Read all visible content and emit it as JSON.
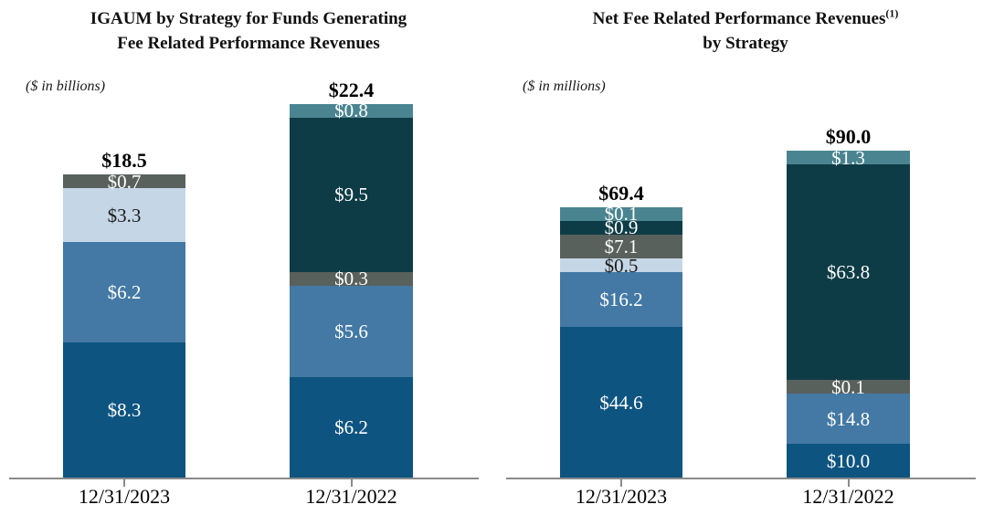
{
  "chart_data": [
    {
      "type": "bar",
      "stacked": true,
      "title_line1": "IGAUM by Strategy for Funds Generating",
      "title_sup": "",
      "title_line2": "Fee Related Performance Revenues",
      "unit_note": "($ in billions)",
      "categories": [
        "12/31/2023",
        "12/31/2022"
      ],
      "totals": [
        18.5,
        22.4
      ],
      "total_labels": [
        "$18.5",
        "$22.4"
      ],
      "legend": "none",
      "axis": {
        "baseline": true,
        "ticks": true,
        "gridlines": false
      },
      "series": [
        {
          "name": "dark-blue",
          "color": "#0E5480",
          "label_color": "#FFFFFF",
          "values": [
            8.3,
            6.2
          ],
          "labels": [
            "$8.3",
            "$6.2"
          ]
        },
        {
          "name": "medium-blue",
          "color": "#4379A4",
          "label_color": "#FFFFFF",
          "values": [
            6.2,
            5.6
          ],
          "labels": [
            "$6.2",
            "$5.6"
          ]
        },
        {
          "name": "light-blue",
          "color": "#C5D6E6",
          "label_color": "#1A1A1A",
          "values": [
            3.3,
            0
          ],
          "labels": [
            "$3.3",
            ""
          ]
        },
        {
          "name": "gray",
          "color": "#59615D",
          "label_color": "#FFFFFF",
          "values": [
            0.7,
            0.3
          ],
          "labels": [
            "$0.7",
            "$0.3"
          ]
        },
        {
          "name": "dark-teal",
          "color": "#0E3C46",
          "label_color": "#FFFFFF",
          "values": [
            0,
            9.5
          ],
          "labels": [
            "",
            "$9.5"
          ]
        },
        {
          "name": "teal",
          "color": "#4A8490",
          "label_color": "#FFFFFF",
          "values": [
            0,
            0.8
          ],
          "labels": [
            "",
            "$0.8"
          ]
        }
      ]
    },
    {
      "type": "bar",
      "stacked": true,
      "title_line1": "Net Fee Related Performance Revenues",
      "title_sup": "(1)",
      "title_line2": "by Strategy",
      "unit_note": "($ in millions)",
      "categories": [
        "12/31/2023",
        "12/31/2022"
      ],
      "totals": [
        69.4,
        90.0
      ],
      "total_labels": [
        "$69.4",
        "$90.0"
      ],
      "legend": "none",
      "axis": {
        "baseline": true,
        "ticks": true,
        "gridlines": false
      },
      "series": [
        {
          "name": "dark-blue",
          "color": "#0E5480",
          "label_color": "#FFFFFF",
          "values": [
            44.6,
            10.0
          ],
          "labels": [
            "$44.6",
            "$10.0"
          ]
        },
        {
          "name": "medium-blue",
          "color": "#4379A4",
          "label_color": "#FFFFFF",
          "values": [
            16.2,
            14.8
          ],
          "labels": [
            "$16.2",
            "$14.8"
          ]
        },
        {
          "name": "light-blue",
          "color": "#C5D6E6",
          "label_color": "#1A1A1A",
          "values": [
            0.5,
            0
          ],
          "labels": [
            "$0.5",
            ""
          ]
        },
        {
          "name": "gray",
          "color": "#59615D",
          "label_color": "#FFFFFF",
          "values": [
            7.1,
            0.1
          ],
          "labels": [
            "$7.1",
            "$0.1"
          ]
        },
        {
          "name": "dark-teal",
          "color": "#0E3C46",
          "label_color": "#FFFFFF",
          "values": [
            0.9,
            63.8
          ],
          "labels": [
            "$0.9",
            "$63.8"
          ]
        },
        {
          "name": "teal",
          "color": "#4A8490",
          "label_color": "#FFFFFF",
          "values": [
            0.1,
            1.3
          ],
          "labels": [
            "$0.1",
            "$1.3"
          ]
        }
      ]
    }
  ],
  "colors": {
    "axis": "#8A8A8A",
    "title_text": "#111111",
    "total_text": "#000000"
  }
}
